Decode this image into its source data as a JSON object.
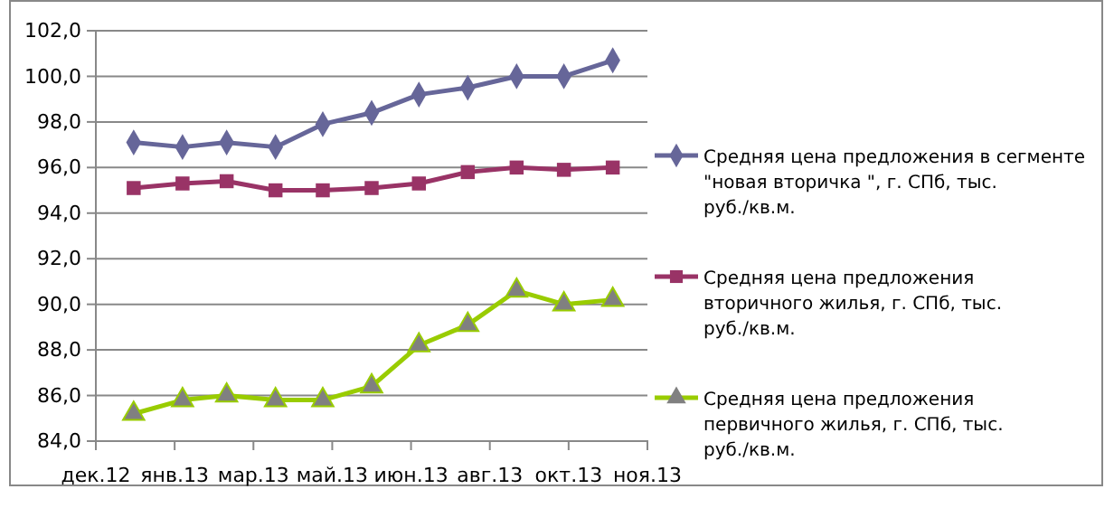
{
  "chart_data": {
    "type": "line",
    "x": [
      "2013-01-01",
      "2013-02-01",
      "2013-03-01",
      "2013-04-01",
      "2013-05-01",
      "2013-06-01",
      "2013-07-01",
      "2013-08-01",
      "2013-09-01",
      "2013-10-01",
      "2013-11-01"
    ],
    "xlim": [
      "2012-12-08",
      "2013-11-23"
    ],
    "xticks": [
      {
        "value": "2012-12-08",
        "label": "дек.12"
      },
      {
        "value": "2013-01-27",
        "label": "янв.13"
      },
      {
        "value": "2013-03-18",
        "label": "мар.13"
      },
      {
        "value": "2013-05-07",
        "label": "май.13"
      },
      {
        "value": "2013-06-26",
        "label": "июн.13"
      },
      {
        "value": "2013-08-15",
        "label": "авг.13"
      },
      {
        "value": "2013-10-04",
        "label": "окт.13"
      },
      {
        "value": "2013-11-23",
        "label": "ноя.13"
      }
    ],
    "ylim": [
      84,
      102
    ],
    "yticks": [
      {
        "value": 84,
        "label": "84,0"
      },
      {
        "value": 86,
        "label": "86,0"
      },
      {
        "value": 88,
        "label": "88,0"
      },
      {
        "value": 90,
        "label": "90,0"
      },
      {
        "value": 92,
        "label": "92,0"
      },
      {
        "value": 94,
        "label": "94,0"
      },
      {
        "value": 96,
        "label": "96,0"
      },
      {
        "value": 98,
        "label": "98,0"
      },
      {
        "value": 100,
        "label": "100,0"
      },
      {
        "value": 102,
        "label": "102,0"
      }
    ],
    "grid": "y",
    "legend": "right",
    "series": [
      {
        "name": "Средняя цена предложения в сегменте \"новая вторичка \", г. СПб,  тыс. руб./кв.м.",
        "color": "#666699",
        "marker": "diamond",
        "values": [
          97.1,
          96.9,
          97.1,
          96.9,
          97.9,
          98.4,
          99.2,
          99.5,
          100.0,
          100.0,
          100.7
        ]
      },
      {
        "name": "Средняя цена предложения вторичного жилья, г. СПб,  тыс. руб./кв.м.",
        "color": "#993366",
        "marker": "square",
        "values": [
          95.1,
          95.3,
          95.4,
          95.0,
          95.0,
          95.1,
          95.3,
          95.8,
          96.0,
          95.9,
          96.0
        ]
      },
      {
        "name": "Средняя цена предложения первичного жилья, г. СПб,  тыс. руб./кв.м.",
        "color": "#99cc00",
        "marker": "triangle",
        "values": [
          85.2,
          85.8,
          86.0,
          85.8,
          85.8,
          86.4,
          88.2,
          89.1,
          90.6,
          90.0,
          90.2
        ]
      }
    ]
  }
}
